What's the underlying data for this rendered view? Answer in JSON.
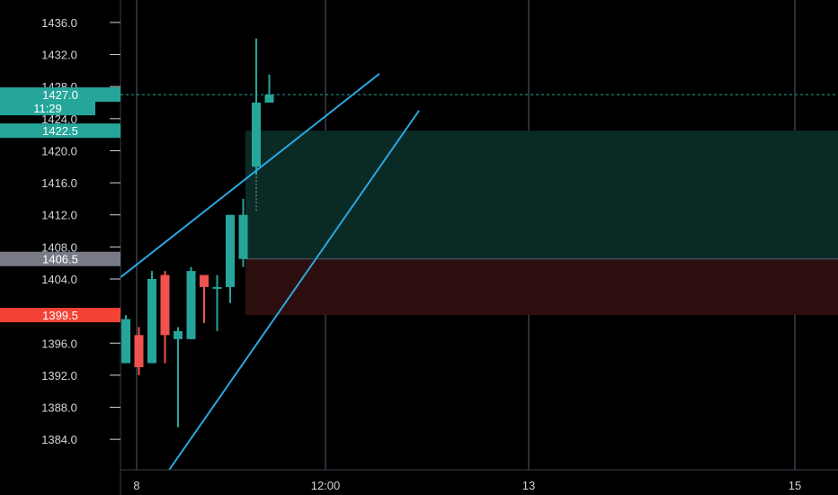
{
  "chart_data": {
    "type": "candlestick",
    "colors": {
      "background": "#000000",
      "grid": "#3a3e4a",
      "axis_text": "#d1d4dc",
      "up": "#26a69a",
      "down": "#ef5350",
      "trendline": "#2aa7e0",
      "target_zone": "#0a2a26",
      "stop_zone": "#2d0e0e",
      "price_tag": "#26a69a",
      "entry_tag": "#787b86",
      "stop_tag": "#f44336"
    },
    "y_axis": {
      "min": 1380.2,
      "max": 1438.8,
      "ticks": [
        "1436.0",
        "1432.0",
        "1428.0",
        "1424.0",
        "1420.0",
        "1416.0",
        "1412.0",
        "1408.0",
        "1404.0",
        "1396.0",
        "1392.0",
        "1388.0",
        "1384.0"
      ]
    },
    "x_axis": {
      "labels": [
        "8",
        "12:00",
        "13",
        "15"
      ]
    },
    "candles": [
      {
        "o": 1393.5,
        "h": 1399.5,
        "l": 1393.5,
        "c": 1399.0
      },
      {
        "o": 1397.0,
        "h": 1398.0,
        "l": 1392.0,
        "c": 1393.0
      },
      {
        "o": 1393.5,
        "h": 1405.0,
        "l": 1393.5,
        "c": 1404.0
      },
      {
        "o": 1404.5,
        "h": 1405.0,
        "l": 1393.5,
        "c": 1397.0
      },
      {
        "o": 1396.5,
        "h": 1398.0,
        "l": 1385.5,
        "c": 1397.5
      },
      {
        "o": 1396.5,
        "h": 1405.5,
        "l": 1396.5,
        "c": 1405.0
      },
      {
        "o": 1404.5,
        "h": 1404.5,
        "l": 1398.5,
        "c": 1403.0
      },
      {
        "o": 1403.0,
        "h": 1404.5,
        "l": 1397.5,
        "c": 1403.0
      },
      {
        "o": 1403.0,
        "h": 1412.0,
        "l": 1401.0,
        "c": 1412.0
      },
      {
        "o": 1406.5,
        "h": 1414.0,
        "l": 1405.5,
        "c": 1412.0
      },
      {
        "o": 1418.0,
        "h": 1434.0,
        "l": 1417.0,
        "c": 1426.0
      },
      {
        "o": 1426.0,
        "h": 1429.5,
        "l": 1426.0,
        "c": 1427.0
      }
    ],
    "trendlines": [
      {
        "x1": 0,
        "y1": 1404.2,
        "x2": 1,
        "y2": 1429.6
      },
      {
        "x1": 0,
        "y1": 1380.5,
        "x2": 1,
        "y2": 1425.0
      }
    ],
    "position": {
      "target": 1422.5,
      "entry": 1406.5,
      "stop": 1399.5
    },
    "price_tags": {
      "current_price": "1427.0",
      "countdown": "11:29",
      "target": "1422.5",
      "entry": "1406.5",
      "stop": "1399.5"
    }
  }
}
